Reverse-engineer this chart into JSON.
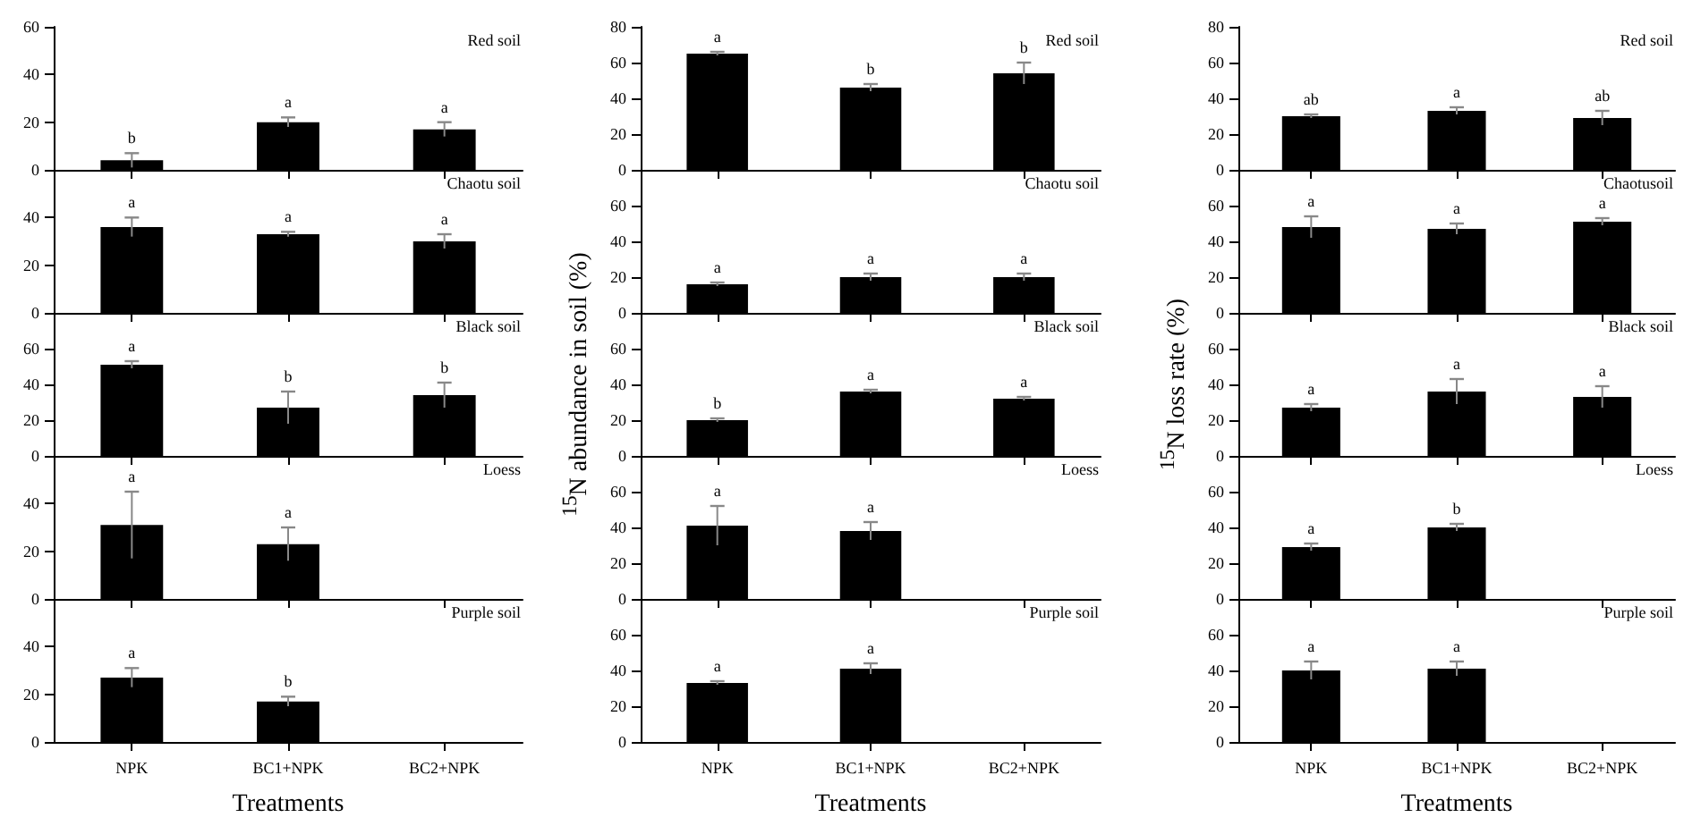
{
  "chart_data": [
    {
      "type": "bar",
      "title": "Red soil",
      "categories": [
        null,
        null,
        null
      ],
      "values": [
        4,
        20,
        17
      ],
      "errors": [
        3,
        2,
        3
      ],
      "color": "#000000",
      "ylim": [
        0,
        60
      ],
      "yticks": [
        0,
        20,
        40,
        60
      ],
      "tick_labels": "y",
      "annotations": [
        "b",
        "a",
        "a"
      ]
    },
    {
      "type": "bar",
      "title": "Chaotu soil",
      "categories": [
        null,
        null,
        null
      ],
      "values": [
        36,
        33,
        30
      ],
      "errors": [
        4,
        1,
        3
      ],
      "color": "#000000",
      "ylim": [
        0,
        60
      ],
      "yticks": [
        0,
        20,
        40
      ],
      "tick_labels": "y",
      "annotations": [
        "a",
        "a",
        "a"
      ]
    },
    {
      "type": "bar",
      "title": "Black soil",
      "categories": [
        null,
        null,
        null
      ],
      "values": [
        51,
        27,
        34
      ],
      "errors": [
        2,
        9,
        7
      ],
      "color": "#000000",
      "ylim": [
        0,
        80
      ],
      "yticks": [
        0,
        20,
        40,
        60
      ],
      "tick_labels": "y",
      "annotations": [
        "a",
        "b",
        "b"
      ]
    },
    {
      "type": "bar",
      "title": "Loess",
      "categories": [
        null,
        null,
        null
      ],
      "values": [
        31,
        23,
        null
      ],
      "errors": [
        14,
        7,
        null
      ],
      "color": "#000000",
      "ylim": [
        0,
        60
      ],
      "yticks": [
        0,
        20,
        40
      ],
      "tick_labels": "y",
      "annotations": [
        "a",
        "a"
      ]
    },
    {
      "type": "bar",
      "title": "Purple soil",
      "categories": [
        "NPK",
        "BC1+NPK",
        "BC2+NPK"
      ],
      "values": [
        27,
        17,
        null
      ],
      "errors": [
        4,
        2,
        null
      ],
      "color": "#000000",
      "ylim": [
        0,
        60
      ],
      "yticks": [
        0,
        20,
        40
      ],
      "xlabel": "Treatments",
      "annotations": [
        "a",
        "b"
      ]
    },
    {
      "type": "bar",
      "title": "Red soil",
      "categories": [
        null,
        null,
        null
      ],
      "values": [
        65,
        46,
        54
      ],
      "errors": [
        1,
        2,
        6
      ],
      "color": "#000000",
      "ylim": [
        0,
        80
      ],
      "yticks": [
        0,
        20,
        40,
        60,
        80
      ],
      "tick_labels": "y",
      "annotations": [
        "a",
        "b",
        "b"
      ]
    },
    {
      "type": "bar",
      "title": "Chaotu soil",
      "categories": [
        null,
        null,
        null
      ],
      "values": [
        16,
        20,
        20
      ],
      "errors": [
        1,
        2,
        2
      ],
      "color": "#000000",
      "ylim": [
        0,
        80
      ],
      "yticks": [
        0,
        20,
        40,
        60
      ],
      "tick_labels": "y",
      "annotations": [
        "a",
        "a",
        "a"
      ]
    },
    {
      "type": "bar",
      "title": "Black soil",
      "categories": [
        null,
        null,
        null
      ],
      "values": [
        20,
        36,
        32
      ],
      "errors": [
        1,
        1,
        1
      ],
      "color": "#000000",
      "ylim": [
        0,
        80
      ],
      "yticks": [
        0,
        20,
        40,
        60
      ],
      "tick_labels": "y",
      "ylabel": "$^{15}$N abundance in soil (%)",
      "annotations": [
        "b",
        "a",
        "a"
      ]
    },
    {
      "type": "bar",
      "title": "Loess",
      "categories": [
        null,
        null,
        null
      ],
      "values": [
        41,
        38,
        null
      ],
      "errors": [
        11,
        5,
        null
      ],
      "color": "#000000",
      "ylim": [
        0,
        80
      ],
      "yticks": [
        0,
        20,
        40,
        60
      ],
      "tick_labels": "y",
      "annotations": [
        "a",
        "a"
      ]
    },
    {
      "type": "bar",
      "title": "Purple soil",
      "categories": [
        "NPK",
        "BC1+NPK",
        "BC2+NPK"
      ],
      "values": [
        33,
        41,
        null
      ],
      "errors": [
        1,
        3,
        null
      ],
      "color": "#000000",
      "ylim": [
        0,
        80
      ],
      "yticks": [
        0,
        20,
        40,
        60
      ],
      "xlabel": "Treatments",
      "annotations": [
        "a",
        "a"
      ]
    },
    {
      "type": "bar",
      "title": "Red soil",
      "categories": [
        null,
        null,
        null
      ],
      "values": [
        30,
        33,
        29
      ],
      "errors": [
        1,
        2,
        4
      ],
      "color": "#000000",
      "ylim": [
        0,
        80
      ],
      "yticks": [
        0,
        20,
        40,
        60,
        80
      ],
      "tick_labels": "y",
      "annotations": [
        "ab",
        "a",
        "ab"
      ]
    },
    {
      "type": "bar",
      "title": "Chaotusoil",
      "categories": [
        null,
        null,
        null
      ],
      "values": [
        48,
        47,
        51
      ],
      "errors": [
        6,
        3,
        2
      ],
      "color": "#000000",
      "ylim": [
        0,
        80
      ],
      "yticks": [
        0,
        20,
        40,
        60
      ],
      "tick_labels": "y",
      "annotations": [
        "a",
        "a",
        "a"
      ]
    },
    {
      "type": "bar",
      "title": "Black soil",
      "categories": [
        null,
        null,
        null
      ],
      "values": [
        27,
        36,
        33
      ],
      "errors": [
        2,
        7,
        6
      ],
      "color": "#000000",
      "ylim": [
        0,
        80
      ],
      "yticks": [
        0,
        20,
        40,
        60
      ],
      "tick_labels": "y",
      "ylabel": "$^{15}$N loss rate (%)",
      "annotations": [
        "a",
        "a",
        "a"
      ]
    },
    {
      "type": "bar",
      "title": "Loess",
      "categories": [
        null,
        null,
        null
      ],
      "values": [
        29,
        40,
        null
      ],
      "errors": [
        2,
        2,
        null
      ],
      "color": "#000000",
      "ylim": [
        0,
        80
      ],
      "yticks": [
        0,
        20,
        40,
        60
      ],
      "tick_labels": "y",
      "annotations": [
        "a",
        "b"
      ]
    },
    {
      "type": "bar",
      "title": "Purple soil",
      "categories": [
        "NPK",
        "BC1+NPK",
        "BC2+NPK"
      ],
      "values": [
        40,
        41,
        null
      ],
      "errors": [
        5,
        4,
        null
      ],
      "color": "#000000",
      "ylim": [
        0,
        80
      ],
      "yticks": [
        0,
        20,
        40,
        60
      ],
      "xlabel": "Treatments",
      "annotations": [
        "a",
        "a"
      ]
    }
  ]
}
